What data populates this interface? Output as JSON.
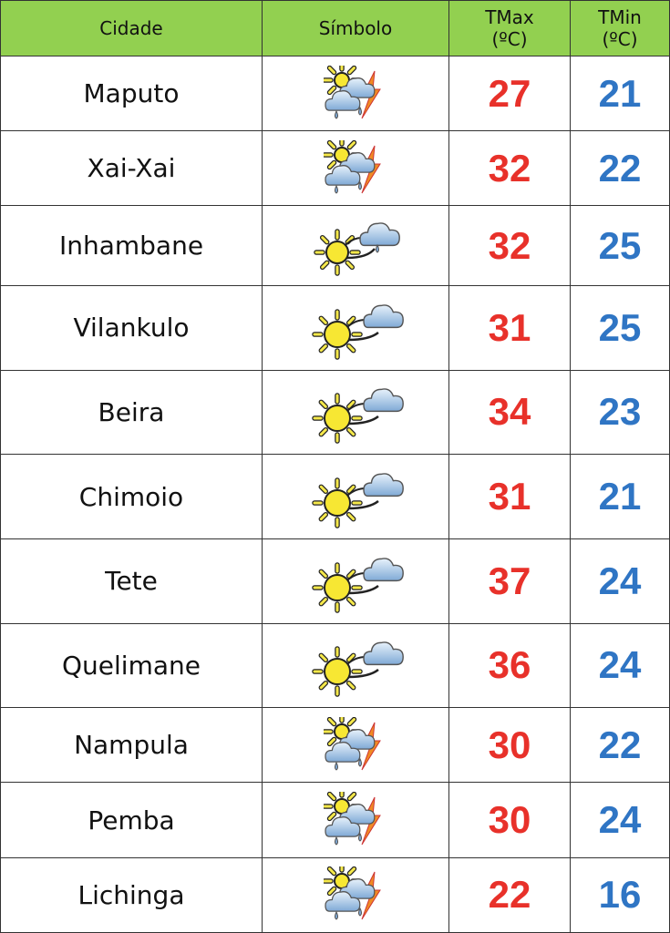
{
  "headers": {
    "city": "Cidade",
    "symbol": "Símbolo",
    "tmax_line1": "TMax",
    "tmax_line2": "(ºC)",
    "tmin_line1": "TMin",
    "tmin_line2": "(ºC)"
  },
  "colors": {
    "header_bg": "#92d050",
    "tmax": "#e8312a",
    "tmin": "#2f75c4"
  },
  "rows": [
    {
      "city": "Maputo",
      "icon": "thunderstorm-sun-icon",
      "tmax": "27",
      "tmin": "21"
    },
    {
      "city": "Xai-Xai",
      "icon": "thunderstorm-sun-icon",
      "tmax": "32",
      "tmin": "22"
    },
    {
      "city": "Inhambane",
      "icon": "sun-cloud-rain-icon",
      "tmax": "32",
      "tmin": "25"
    },
    {
      "city": "Vilankulo",
      "icon": "sun-cloud-icon",
      "tmax": "31",
      "tmin": "25"
    },
    {
      "city": "Beira",
      "icon": "sun-cloud-icon",
      "tmax": "34",
      "tmin": "23"
    },
    {
      "city": "Chimoio",
      "icon": "sun-cloud-icon",
      "tmax": "31",
      "tmin": "21"
    },
    {
      "city": "Tete",
      "icon": "sun-cloud-icon",
      "tmax": "37",
      "tmin": "24"
    },
    {
      "city": "Quelimane",
      "icon": "sun-cloud-icon",
      "tmax": "36",
      "tmin": "24"
    },
    {
      "city": "Nampula",
      "icon": "thunderstorm-sun-icon",
      "tmax": "30",
      "tmin": "22"
    },
    {
      "city": "Pemba",
      "icon": "thunderstorm-sun-icon",
      "tmax": "30",
      "tmin": "24"
    },
    {
      "city": "Lichinga",
      "icon": "thunderstorm-sun-icon",
      "tmax": "22",
      "tmin": "16"
    }
  ]
}
